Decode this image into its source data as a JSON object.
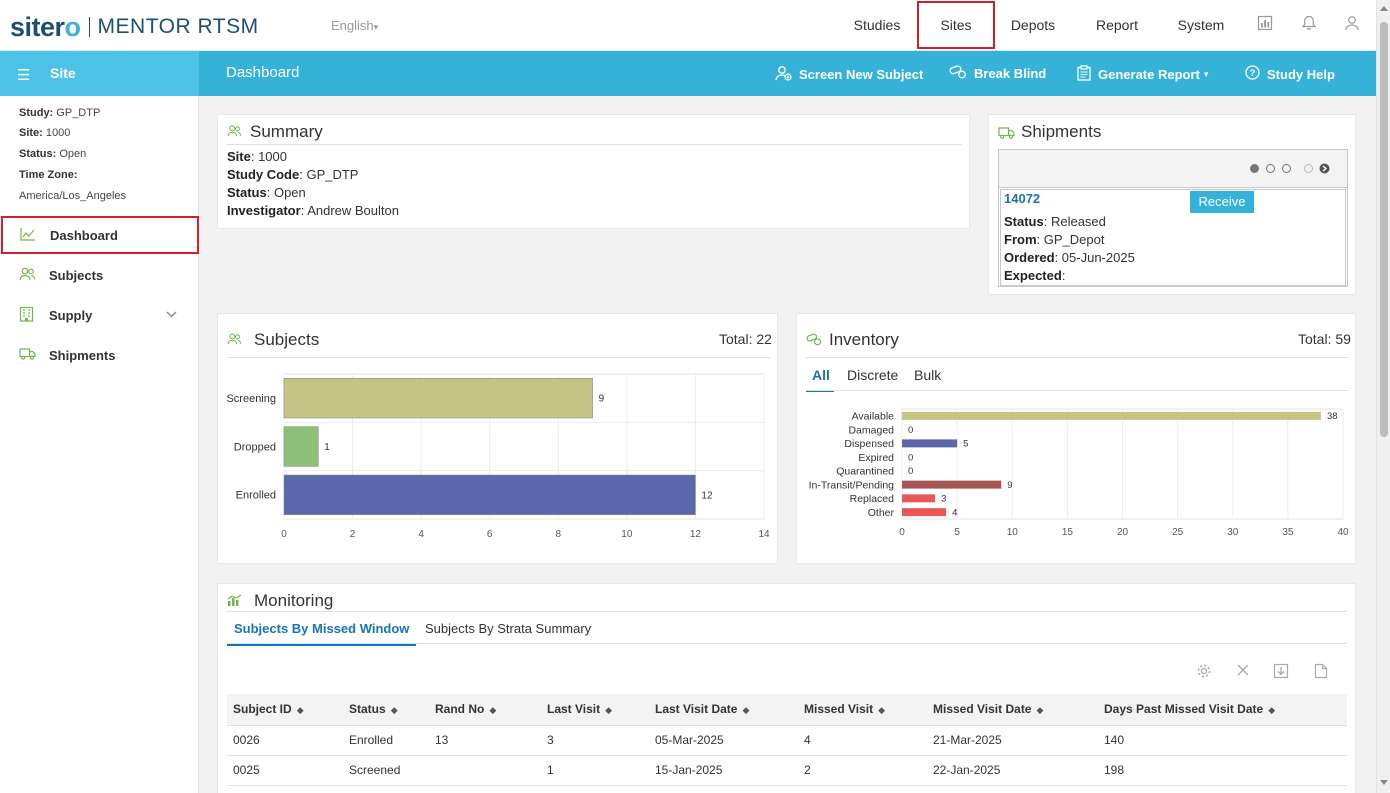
{
  "brand": {
    "name1": "siter",
    "name2": "o",
    "product": "MENTOR RTSM"
  },
  "top": {
    "language": "English",
    "nav": [
      {
        "label": "Studies",
        "active": false
      },
      {
        "label": "Sites",
        "active": true
      },
      {
        "label": "Depots",
        "active": false
      },
      {
        "label": "Report",
        "active": false
      },
      {
        "label": "System",
        "active": false
      }
    ]
  },
  "sitebar": {
    "label": "Site"
  },
  "actionbar": {
    "title": "Dashboard",
    "actions": [
      {
        "label": "Screen New Subject",
        "icon": "user-add-icon"
      },
      {
        "label": "Break Blind",
        "icon": "pills-icon"
      },
      {
        "label": "Generate Report",
        "icon": "clipboard-icon"
      },
      {
        "label": "Study Help",
        "icon": "help-icon"
      }
    ]
  },
  "sidebar": {
    "study_label": "Study:",
    "study": "GP_DTP",
    "site_label": "Site:",
    "site": "1000",
    "status_label": "Status:",
    "status": "Open",
    "tz_label": "Time Zone:",
    "tz": "America/Los_Angeles",
    "items": [
      {
        "label": "Dashboard",
        "icon": "line-chart-icon",
        "active": true
      },
      {
        "label": "Subjects",
        "icon": "users-icon"
      },
      {
        "label": "Supply",
        "icon": "building-icon"
      },
      {
        "label": "Shipments",
        "icon": "truck-icon"
      }
    ]
  },
  "summary": {
    "title": "Summary",
    "site_label": "Site",
    "site": ": 1000",
    "code_label": "Study Code",
    "code": ": GP_DTP",
    "status_label": "Status",
    "status": ": Open",
    "inv_label": "Investigator",
    "inv": ": Andrew Boulton"
  },
  "shipments": {
    "title": "Shipments",
    "id": "14072",
    "receive": "Receive",
    "status_label": "Status",
    "status": ": Released",
    "from_label": "From",
    "from": ": GP_Depot",
    "ordered_label": "Ordered",
    "ordered": ": 05-Jun-2025",
    "expected_label": "Expected",
    "expected": ":"
  },
  "subjects": {
    "title": "Subjects",
    "total": "Total: 22",
    "chart_data": {
      "type": "bar",
      "orientation": "horizontal",
      "categories": [
        "Screening",
        "Dropped",
        "Enrolled"
      ],
      "values": [
        9,
        1,
        12
      ],
      "colors": [
        "#c5c484",
        "#8fc07a",
        "#5b67ab"
      ],
      "xlim": [
        0,
        14
      ],
      "xticks": [
        0,
        2,
        4,
        6,
        8,
        10,
        12,
        14
      ],
      "grid": true
    }
  },
  "inventory": {
    "title": "Inventory",
    "total": "Total: 59",
    "tabs": [
      "All",
      "Discrete",
      "Bulk"
    ],
    "chart_data": {
      "type": "bar",
      "orientation": "horizontal",
      "categories": [
        "Available",
        "Damaged",
        "Dispensed",
        "Expired",
        "Quarantined",
        "In-Transit/Pending",
        "Replaced",
        "Other"
      ],
      "values": [
        38,
        0,
        5,
        0,
        0,
        9,
        3,
        4
      ],
      "colors": [
        "#c5c484",
        "#c5c484",
        "#5b67ab",
        "#5b67ab",
        "#5b67ab",
        "#a65656",
        "#e85858",
        "#e85858"
      ],
      "xlim": [
        0,
        40
      ],
      "xticks": [
        0,
        5,
        10,
        15,
        20,
        25,
        30,
        35,
        40
      ],
      "grid": true
    }
  },
  "monitoring": {
    "title": "Monitoring",
    "tabs": [
      "Subjects By Missed Window",
      "Subjects By Strata Summary"
    ],
    "columns": [
      "Subject ID",
      "Status",
      "Rand No",
      "Last Visit",
      "Last Visit Date",
      "Missed Visit",
      "Missed Visit Date",
      "Days Past Missed Visit Date"
    ],
    "rows": [
      [
        "0026",
        "Enrolled",
        "13",
        "3",
        "05-Mar-2025",
        "4",
        "21-Mar-2025",
        "140"
      ],
      [
        "0025",
        "Screened",
        "",
        "1",
        "15-Jan-2025",
        "2",
        "22-Jan-2025",
        "198"
      ]
    ]
  }
}
